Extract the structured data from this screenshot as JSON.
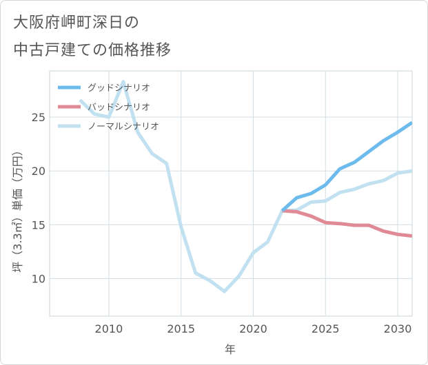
{
  "header": {
    "title_line_1": "大阪府岬町深日の",
    "title_line_2": "中古戸建ての価格推移"
  },
  "chart_data": {
    "type": "line",
    "title": "大阪府岬町深日の中古戸建ての価格推移",
    "xlabel": "年",
    "ylabel": "坪（3.3㎡）単価（万円）",
    "xlim": [
      2005.9,
      2031
    ],
    "ylim": [
      6.5,
      29.3
    ],
    "xticks": [
      2010,
      2015,
      2020,
      2025,
      2030
    ],
    "yticks": [
      10,
      15,
      20,
      25
    ],
    "grid": true,
    "legend_position": "top-left",
    "series": [
      {
        "name": "グッドシナリオ",
        "color": "#6dbbec",
        "x": [
          2022,
          2023,
          2024,
          2025,
          2026,
          2027,
          2028,
          2029,
          2030,
          2031
        ],
        "y": [
          16.3,
          17.5,
          17.9,
          18.7,
          20.2,
          20.8,
          21.8,
          22.8,
          23.6,
          24.5
        ]
      },
      {
        "name": "バッドシナリオ",
        "color": "#df8a95",
        "x": [
          2022,
          2023,
          2024,
          2025,
          2026,
          2027,
          2028,
          2029,
          2030,
          2031
        ],
        "y": [
          16.3,
          16.2,
          15.8,
          15.2,
          15.1,
          14.95,
          14.95,
          14.4,
          14.1,
          13.95
        ]
      },
      {
        "name": "ノーマルシナリオ",
        "color": "#c2e1f0",
        "x": [
          2008,
          2009,
          2010,
          2011,
          2012,
          2013,
          2014,
          2015,
          2016,
          2017,
          2018,
          2019,
          2020,
          2021,
          2022,
          2023,
          2024,
          2025,
          2026,
          2027,
          2028,
          2029,
          2030,
          2031
        ],
        "y": [
          26.6,
          25.3,
          25.0,
          28.3,
          23.6,
          21.6,
          20.7,
          14.8,
          10.5,
          9.8,
          8.8,
          10.2,
          12.4,
          13.4,
          16.3,
          16.35,
          17.1,
          17.2,
          18.0,
          18.3,
          18.8,
          19.1,
          19.8,
          20.0
        ]
      }
    ]
  }
}
